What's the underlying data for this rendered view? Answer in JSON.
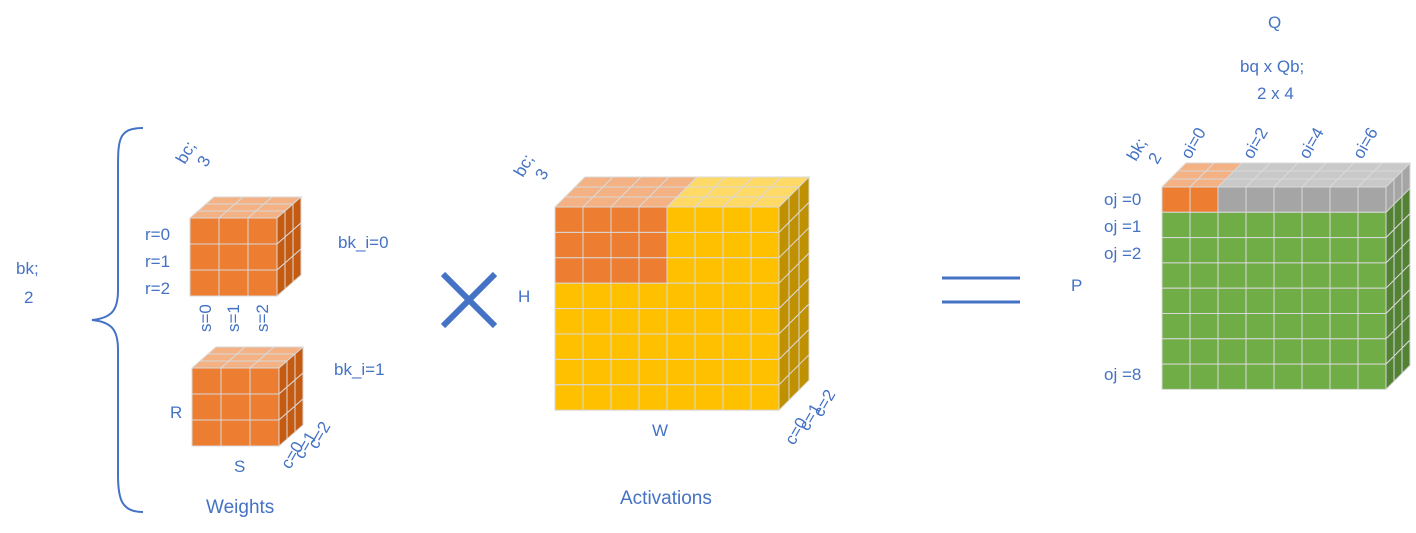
{
  "colors": {
    "label": "#4472C4",
    "orange_front": "#ED7D31",
    "orange_top": "#F4B183",
    "orange_side": "#C55A11",
    "yellow_front": "#FFC000",
    "yellow_top": "#FFD966",
    "yellow_side": "#BF9000",
    "green_front": "#70AD47",
    "green_side": "#548235",
    "gray_front": "#A5A5A5",
    "gray_top": "#C9C9C9",
    "grid_line": "#D9D9D9"
  },
  "weights": {
    "group_label_line1": "bk;",
    "group_label_line2": "2",
    "bc_line1": "bc;",
    "bc_line2": "3",
    "r_labels": [
      "r=0",
      "r=1",
      "r=2"
    ],
    "s_labels": [
      "s=0",
      "s=1",
      "s=2"
    ],
    "bk_i0": "bk_i=0",
    "bk_i1": "bk_i=1",
    "R": "R",
    "S": "S",
    "c_labels": [
      "c=0",
      "c=1",
      "c=2"
    ],
    "caption": "Weights"
  },
  "operator_times": "multiply-x-icon",
  "activations": {
    "bc_line1": "bc;",
    "bc_line2": "3",
    "H": "H",
    "W": "W",
    "c_labels": [
      "c=0",
      "c=1",
      "c=2"
    ],
    "caption": "Activations"
  },
  "operator_equals": "equals-icon",
  "output": {
    "Q": "Q",
    "bq_line1": "bq x Qb;",
    "bq_line2": "2 x 4",
    "bk_line1": "bk;",
    "bk_line2": "2",
    "oi_labels": [
      "oi=0",
      "oi=2",
      "oi=4",
      "oi=6"
    ],
    "oj_labels": [
      "oj =0",
      "oj =1",
      "oj =2",
      "oj =8"
    ],
    "P": "P"
  }
}
